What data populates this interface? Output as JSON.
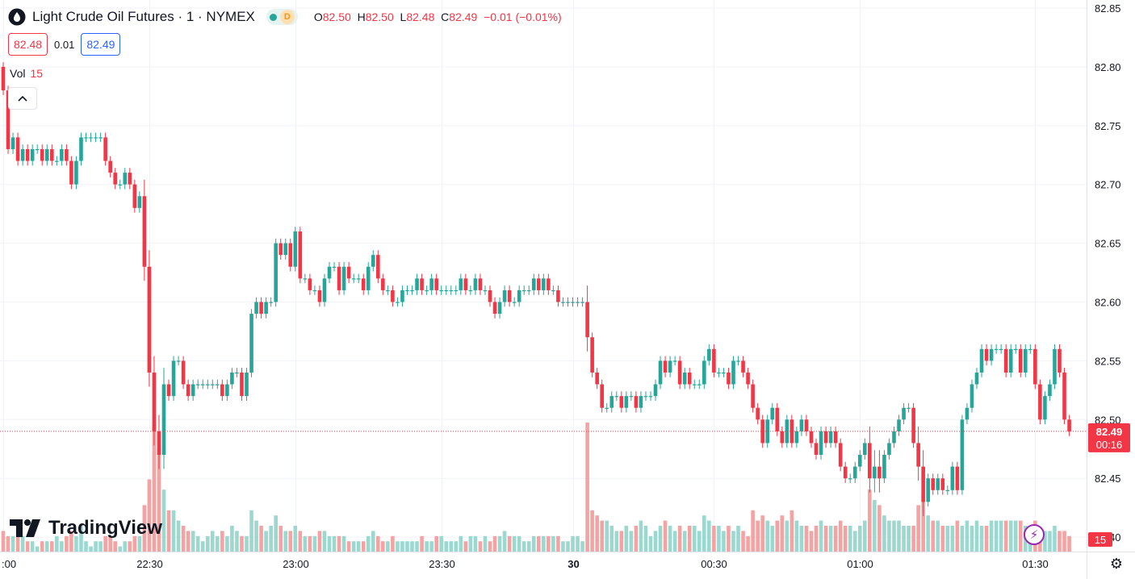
{
  "header": {
    "title": "Light Crude Oil Futures · 1 · NYMEX",
    "badge": "D",
    "open_label": "O",
    "open": "82.50",
    "high_label": "H",
    "high": "82.50",
    "low_label": "L",
    "low": "82.48",
    "close_label": "C",
    "close": "82.49",
    "change": "−0.01 (−0.01%)"
  },
  "quote": {
    "bid": "82.48",
    "spread": "0.01",
    "ask": "82.49"
  },
  "volume": {
    "label": "Vol",
    "value": "15",
    "axis_label": "15"
  },
  "branding": {
    "logo_text": "TradingView"
  },
  "price_axis": {
    "last_price": "82.49",
    "countdown": "00:16"
  },
  "colors": {
    "up": "#26a69a",
    "down": "#f23645",
    "vol_up": "#9ad8d0",
    "vol_down": "#f5a2a2",
    "grid": "#f0f3fa",
    "last_line": "#f23645"
  },
  "chart_data": {
    "type": "candlestick",
    "ylim": [
      82.4,
      82.85
    ],
    "y_ticks": [
      "82.85",
      "82.80",
      "82.75",
      "82.70",
      "82.65",
      "82.60",
      "82.55",
      "82.50",
      "82.45",
      "82.40"
    ],
    "x_ticks": [
      ":00",
      "22:30",
      "23:00",
      "23:30",
      "30",
      "00:30",
      "01:00",
      "01:30"
    ],
    "last_price": 82.49,
    "close_path": [
      [
        82.78,
        4
      ],
      [
        82.73,
        3
      ],
      [
        82.74,
        3
      ],
      [
        82.72,
        4
      ],
      [
        82.73,
        3
      ],
      [
        82.72,
        2
      ],
      [
        82.73,
        2
      ],
      [
        82.73,
        1
      ],
      [
        82.72,
        2
      ],
      [
        82.73,
        2
      ],
      [
        82.72,
        2
      ],
      [
        82.72,
        3
      ],
      [
        82.73,
        2
      ],
      [
        82.72,
        3
      ],
      [
        82.7,
        4
      ],
      [
        82.72,
        3
      ],
      [
        82.74,
        5
      ],
      [
        82.74,
        2
      ],
      [
        82.74,
        1
      ],
      [
        82.74,
        2
      ],
      [
        82.74,
        2
      ],
      [
        82.72,
        3
      ],
      [
        82.71,
        3
      ],
      [
        82.7,
        2
      ],
      [
        82.7,
        1
      ],
      [
        82.71,
        2
      ],
      [
        82.7,
        2
      ],
      [
        82.68,
        3
      ],
      [
        82.69,
        3
      ],
      [
        82.63,
        9
      ],
      [
        82.54,
        14
      ],
      [
        82.49,
        25
      ],
      [
        82.47,
        20
      ],
      [
        82.53,
        12
      ],
      [
        82.52,
        8
      ],
      [
        82.55,
        8
      ],
      [
        82.55,
        6
      ],
      [
        82.53,
        5
      ],
      [
        82.52,
        4
      ],
      [
        82.53,
        4
      ],
      [
        82.53,
        3
      ],
      [
        82.53,
        2
      ],
      [
        82.53,
        3
      ],
      [
        82.53,
        4
      ],
      [
        82.53,
        3
      ],
      [
        82.52,
        4
      ],
      [
        82.53,
        3
      ],
      [
        82.54,
        5
      ],
      [
        82.54,
        4
      ],
      [
        82.52,
        3
      ],
      [
        82.54,
        3
      ],
      [
        82.59,
        8
      ],
      [
        82.6,
        6
      ],
      [
        82.59,
        5
      ],
      [
        82.6,
        4
      ],
      [
        82.6,
        5
      ],
      [
        82.65,
        7
      ],
      [
        82.64,
        5
      ],
      [
        82.65,
        4
      ],
      [
        82.63,
        4
      ],
      [
        82.66,
        5
      ],
      [
        82.62,
        4
      ],
      [
        82.62,
        3
      ],
      [
        82.61,
        3
      ],
      [
        82.61,
        3
      ],
      [
        82.6,
        4
      ],
      [
        82.62,
        4
      ],
      [
        82.63,
        3
      ],
      [
        82.63,
        3
      ],
      [
        82.61,
        3
      ],
      [
        82.63,
        3
      ],
      [
        82.62,
        2
      ],
      [
        82.62,
        2
      ],
      [
        82.62,
        2
      ],
      [
        82.61,
        2
      ],
      [
        82.63,
        3
      ],
      [
        82.64,
        4
      ],
      [
        82.62,
        3
      ],
      [
        82.61,
        2
      ],
      [
        82.61,
        2
      ],
      [
        82.6,
        3
      ],
      [
        82.6,
        2
      ],
      [
        82.61,
        2
      ],
      [
        82.61,
        2
      ],
      [
        82.61,
        2
      ],
      [
        82.62,
        2
      ],
      [
        82.61,
        3
      ],
      [
        82.61,
        2
      ],
      [
        82.62,
        2
      ],
      [
        82.61,
        3
      ],
      [
        82.61,
        3
      ],
      [
        82.61,
        2
      ],
      [
        82.61,
        2
      ],
      [
        82.61,
        2
      ],
      [
        82.62,
        3
      ],
      [
        82.61,
        2
      ],
      [
        82.61,
        3
      ],
      [
        82.62,
        3
      ],
      [
        82.61,
        2
      ],
      [
        82.61,
        3
      ],
      [
        82.6,
        2
      ],
      [
        82.59,
        3
      ],
      [
        82.6,
        3
      ],
      [
        82.61,
        4
      ],
      [
        82.6,
        3
      ],
      [
        82.6,
        3
      ],
      [
        82.61,
        3
      ],
      [
        82.61,
        2
      ],
      [
        82.61,
        2
      ],
      [
        82.62,
        3
      ],
      [
        82.61,
        3
      ],
      [
        82.62,
        3
      ],
      [
        82.61,
        3
      ],
      [
        82.61,
        3
      ],
      [
        82.6,
        3
      ],
      [
        82.6,
        2
      ],
      [
        82.6,
        2
      ],
      [
        82.6,
        3
      ],
      [
        82.6,
        3
      ],
      [
        82.6,
        2
      ],
      [
        82.57,
        25
      ],
      [
        82.54,
        8
      ],
      [
        82.53,
        7
      ],
      [
        82.51,
        6
      ],
      [
        82.51,
        6
      ],
      [
        82.52,
        5
      ],
      [
        82.52,
        4
      ],
      [
        82.51,
        4
      ],
      [
        82.52,
        5
      ],
      [
        82.52,
        4
      ],
      [
        82.51,
        5
      ],
      [
        82.52,
        6
      ],
      [
        82.52,
        5
      ],
      [
        82.52,
        3
      ],
      [
        82.53,
        4
      ],
      [
        82.55,
        5
      ],
      [
        82.54,
        6
      ],
      [
        82.55,
        5
      ],
      [
        82.55,
        4
      ],
      [
        82.53,
        5
      ],
      [
        82.54,
        4
      ],
      [
        82.53,
        5
      ],
      [
        82.53,
        5
      ],
      [
        82.53,
        4
      ],
      [
        82.55,
        7
      ],
      [
        82.56,
        6
      ],
      [
        82.54,
        5
      ],
      [
        82.54,
        5
      ],
      [
        82.54,
        4
      ],
      [
        82.53,
        5
      ],
      [
        82.55,
        4
      ],
      [
        82.55,
        5
      ],
      [
        82.54,
        4
      ],
      [
        82.53,
        3
      ],
      [
        82.51,
        8
      ],
      [
        82.5,
        6
      ],
      [
        82.48,
        7
      ],
      [
        82.5,
        6
      ],
      [
        82.51,
        5
      ],
      [
        82.49,
        6
      ],
      [
        82.48,
        7
      ],
      [
        82.5,
        6
      ],
      [
        82.48,
        8
      ],
      [
        82.49,
        6
      ],
      [
        82.5,
        5
      ],
      [
        82.49,
        5
      ],
      [
        82.48,
        4
      ],
      [
        82.47,
        5
      ],
      [
        82.49,
        6
      ],
      [
        82.48,
        5
      ],
      [
        82.49,
        5
      ],
      [
        82.48,
        5
      ],
      [
        82.46,
        6
      ],
      [
        82.45,
        5
      ],
      [
        82.45,
        5
      ],
      [
        82.46,
        4
      ],
      [
        82.47,
        5
      ],
      [
        82.48,
        6
      ],
      [
        82.45,
        12
      ],
      [
        82.46,
        10
      ],
      [
        82.45,
        9
      ],
      [
        82.47,
        7
      ],
      [
        82.48,
        6
      ],
      [
        82.49,
        6
      ],
      [
        82.5,
        6
      ],
      [
        82.51,
        5
      ],
      [
        82.51,
        5
      ],
      [
        82.48,
        5
      ],
      [
        82.46,
        9
      ],
      [
        82.43,
        11
      ],
      [
        82.45,
        7
      ],
      [
        82.44,
        6
      ],
      [
        82.45,
        6
      ],
      [
        82.44,
        5
      ],
      [
        82.44,
        5
      ],
      [
        82.46,
        5
      ],
      [
        82.44,
        6
      ],
      [
        82.5,
        5
      ],
      [
        82.51,
        6
      ],
      [
        82.53,
        5
      ],
      [
        82.54,
        6
      ],
      [
        82.56,
        5
      ],
      [
        82.55,
        5
      ],
      [
        82.56,
        6
      ],
      [
        82.56,
        6
      ],
      [
        82.56,
        6
      ],
      [
        82.54,
        6
      ],
      [
        82.56,
        6
      ],
      [
        82.56,
        6
      ],
      [
        82.54,
        6
      ],
      [
        82.56,
        5
      ],
      [
        82.56,
        4
      ],
      [
        82.53,
        6
      ],
      [
        82.5,
        4
      ],
      [
        82.52,
        4
      ],
      [
        82.53,
        4
      ],
      [
        82.56,
        5
      ],
      [
        82.54,
        4
      ],
      [
        82.5,
        4
      ],
      [
        82.49,
        3
      ]
    ]
  }
}
